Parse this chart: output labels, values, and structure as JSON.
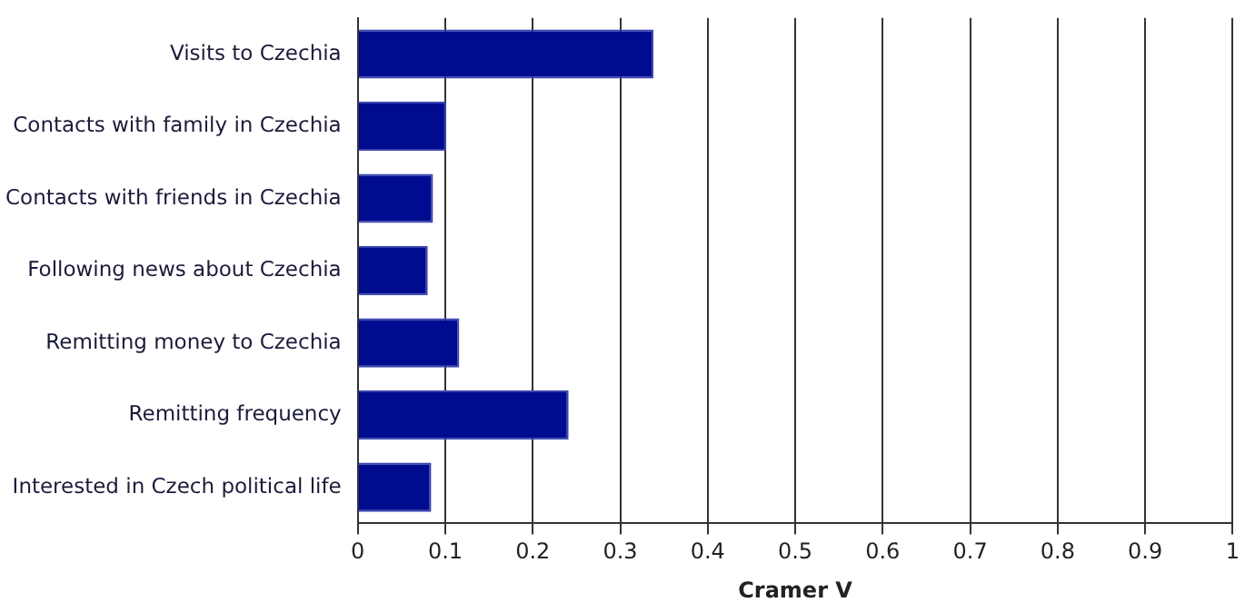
{
  "chart_data": {
    "type": "bar",
    "orientation": "horizontal",
    "xlabel": "Cramer V",
    "categories": [
      "Visits to Czechia",
      "Contacts with family in Czechia",
      "Contacts with friends in Czechia",
      "Following news about Czechia",
      "Remitting money to Czechia",
      "Remitting frequency",
      "Interested in Czech political life"
    ],
    "values": [
      0.338,
      0.101,
      0.086,
      0.08,
      0.116,
      0.241,
      0.084
    ],
    "color": "#000c8f",
    "xlim": [
      0,
      1
    ],
    "xticks": [
      0,
      0.1,
      0.2,
      0.3,
      0.4,
      0.5,
      0.6,
      0.7,
      0.8,
      0.9,
      1
    ],
    "grid": "x",
    "legend": false
  }
}
